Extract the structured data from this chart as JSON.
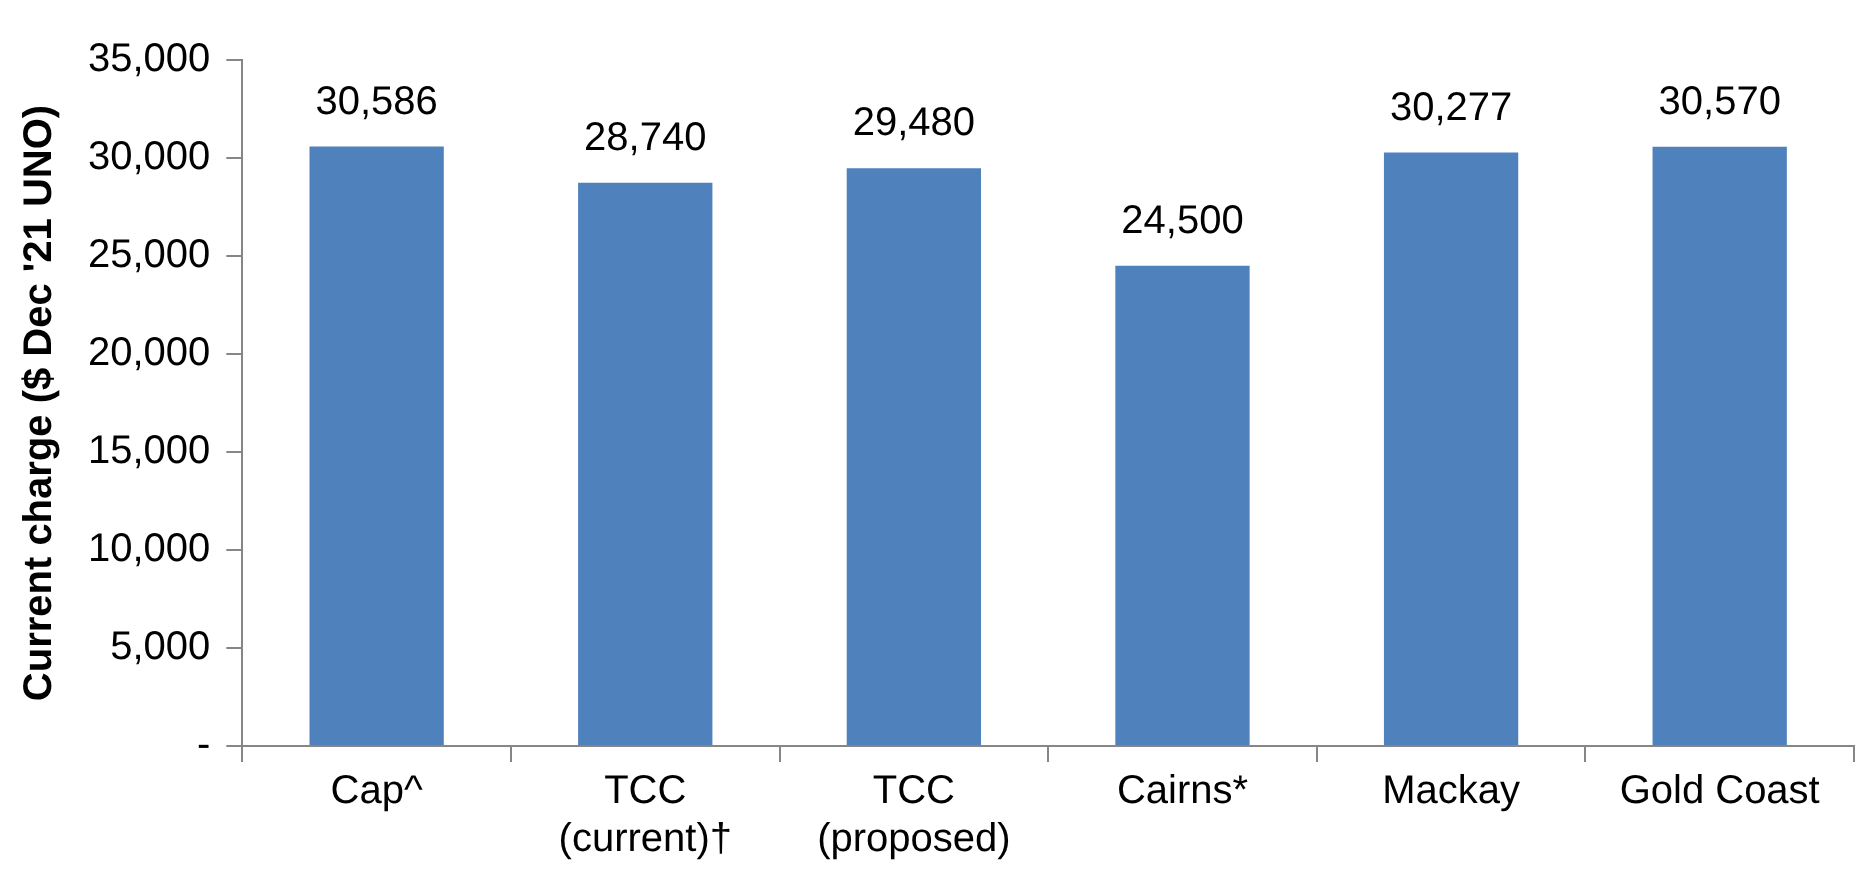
{
  "chart_data": {
    "type": "bar",
    "ylabel": "Current charge ($ Dec '21 UNO)",
    "categories": [
      "Cap^",
      "TCC\n(current)†",
      "TCC\n(proposed)",
      "Cairns*",
      "Mackay",
      "Gold Coast"
    ],
    "values": [
      30586,
      28740,
      29480,
      24500,
      30277,
      30570
    ],
    "color": "#4f81bd",
    "ylim": [
      0,
      35000
    ],
    "yticks": [
      {
        "value": 0,
        "label": "-"
      },
      {
        "value": 5000,
        "label": "5,000"
      },
      {
        "value": 10000,
        "label": "10,000"
      },
      {
        "value": 15000,
        "label": "15,000"
      },
      {
        "value": 20000,
        "label": "20,000"
      },
      {
        "value": 25000,
        "label": "25,000"
      },
      {
        "value": 30000,
        "label": "30,000"
      },
      {
        "value": 35000,
        "label": "35,000"
      }
    ],
    "value_labels": [
      "30,586",
      "28,740",
      "29,480",
      "24,500",
      "30,277",
      "30,570"
    ],
    "grid": false,
    "legend": false
  }
}
